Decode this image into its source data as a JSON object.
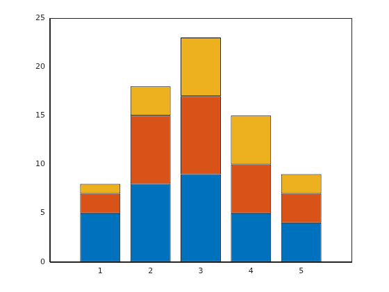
{
  "chart_data": {
    "type": "bar",
    "stacked": true,
    "grid": false,
    "x": [
      1,
      2,
      3,
      4,
      5
    ],
    "series": [
      {
        "color": "#0072bd",
        "values": [
          5,
          8,
          9,
          5,
          4
        ]
      },
      {
        "color": "#d95319",
        "values": [
          2,
          7,
          8,
          5,
          3
        ]
      },
      {
        "color": "#edb120",
        "values": [
          1,
          3,
          6,
          5,
          2
        ]
      }
    ],
    "xlim": [
      0,
      6
    ],
    "xticks": [
      1,
      2,
      3,
      4,
      5
    ],
    "ylim": [
      0,
      25
    ],
    "yticks": [
      0,
      5,
      10,
      15,
      20,
      25
    ]
  }
}
